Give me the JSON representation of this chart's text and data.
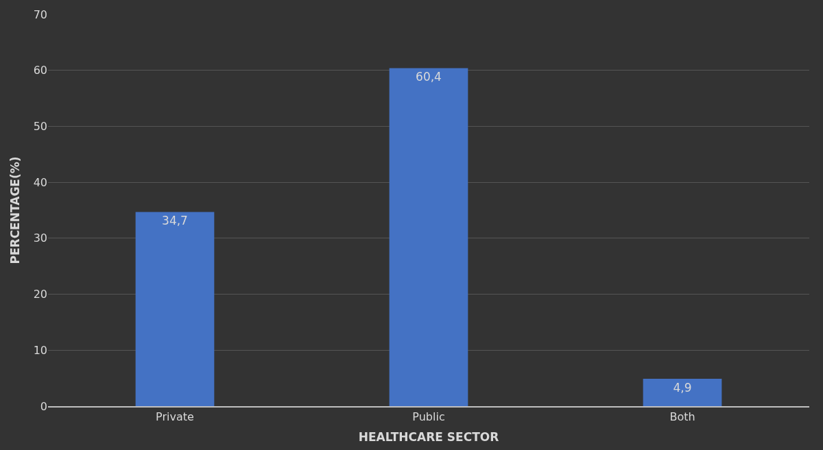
{
  "chart_data": {
    "type": "bar",
    "xlabel": "HEALTHCARE SECTOR",
    "ylabel": "PERCENTAGE(%)",
    "categories": [
      "Private",
      "Public",
      "Both"
    ],
    "values": [
      34.7,
      60.4,
      4.9
    ],
    "value_labels": [
      "34,7",
      "60,4",
      "4,9"
    ],
    "color": "#4472c4",
    "ylim": [
      0,
      70
    ],
    "yticks": [
      0,
      10,
      20,
      30,
      40,
      50,
      60,
      70
    ],
    "grid": "y",
    "legend": false
  }
}
